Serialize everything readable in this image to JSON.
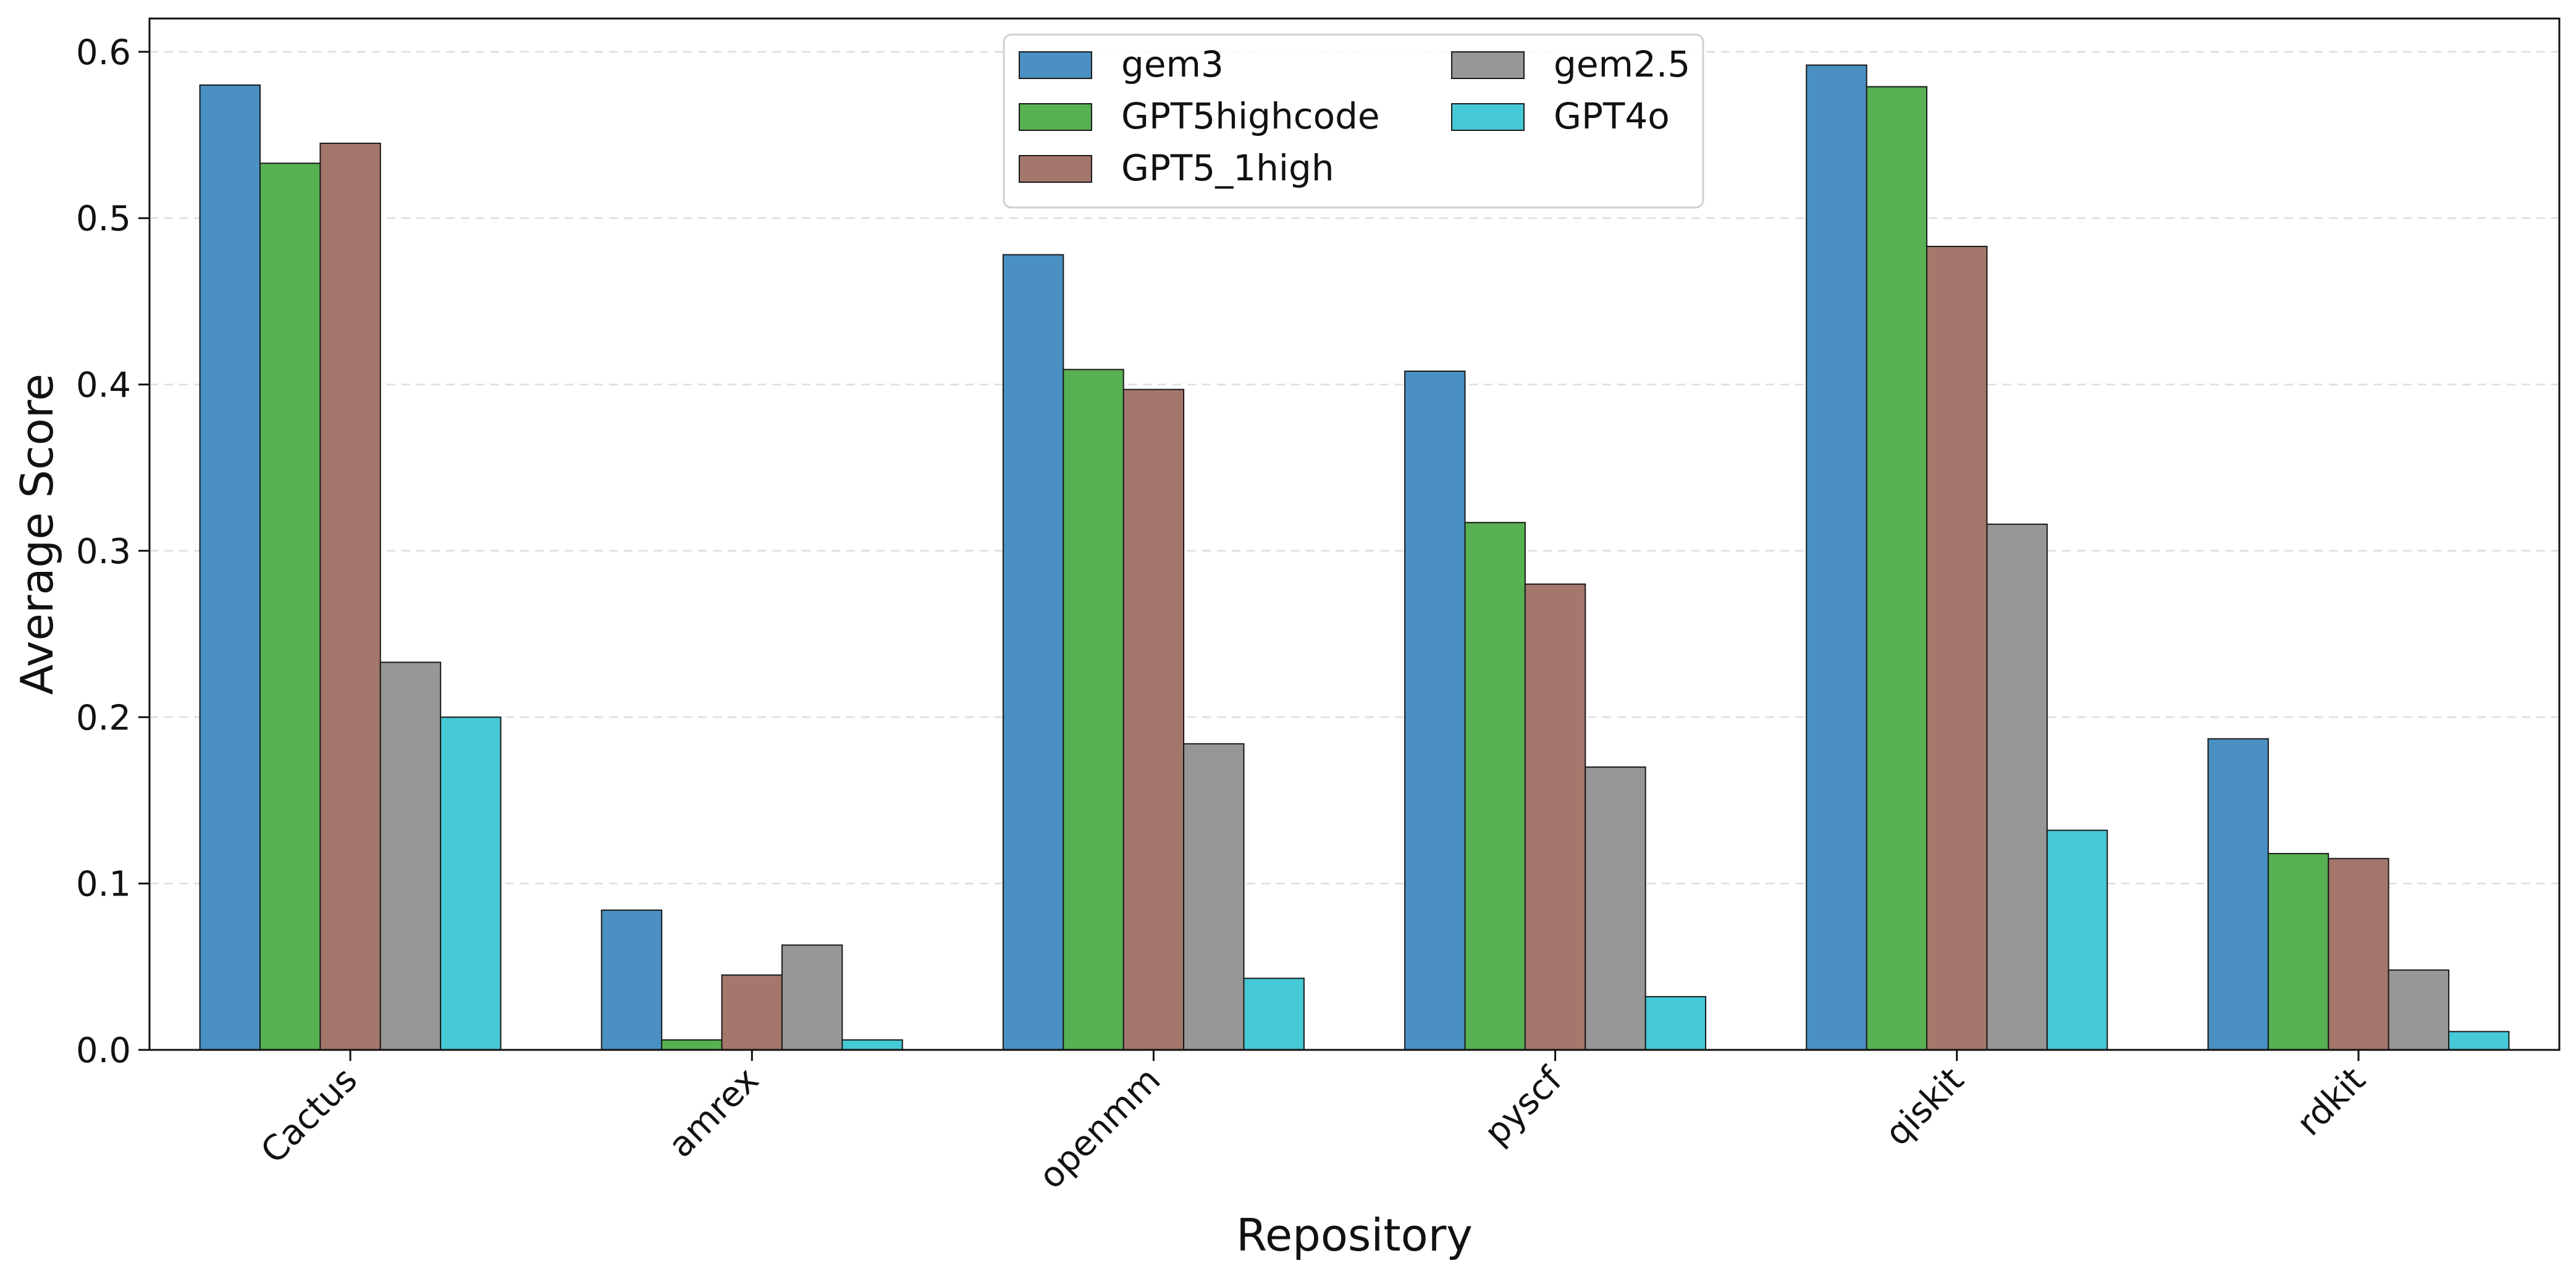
{
  "chart_data": {
    "type": "bar",
    "title": "",
    "xlabel": "Repository",
    "ylabel": "Average Score",
    "categories": [
      "Cactus",
      "amrex",
      "openmm",
      "pyscf",
      "qiskit",
      "rdkit"
    ],
    "series": [
      {
        "name": "gem3",
        "color": "#4a90c2",
        "values": [
          0.58,
          0.084,
          0.478,
          0.408,
          0.592,
          0.187
        ]
      },
      {
        "name": "GPT5highcode",
        "color": "#57b152",
        "values": [
          0.533,
          0.006,
          0.409,
          0.317,
          0.579,
          0.118
        ]
      },
      {
        "name": "GPT5_1high",
        "color": "#a4776c",
        "values": [
          0.545,
          0.045,
          0.397,
          0.28,
          0.483,
          0.115
        ]
      },
      {
        "name": "gem2.5",
        "color": "#979797",
        "values": [
          0.233,
          0.063,
          0.184,
          0.17,
          0.316,
          0.048
        ]
      },
      {
        "name": "GPT4o",
        "color": "#46c9d6",
        "values": [
          0.2,
          0.006,
          0.043,
          0.032,
          0.132,
          0.011
        ]
      }
    ],
    "ylim": [
      0,
      0.62
    ],
    "yticks": [
      "0.0",
      "0.1",
      "0.2",
      "0.3",
      "0.4",
      "0.5",
      "0.6"
    ],
    "grid": "horizontal dashed",
    "legend_position": "top-center",
    "legend_columns": 2
  }
}
